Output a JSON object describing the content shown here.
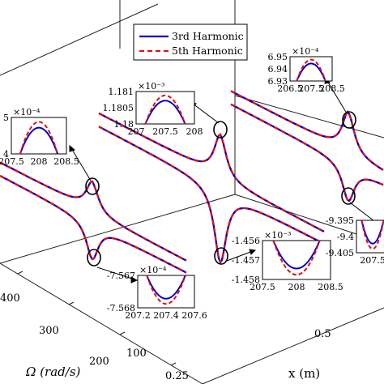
{
  "chart_data": {
    "type": "line",
    "subtype": "3d-frequency-response-curves",
    "axes": {
      "omega": {
        "label": "Ω (rad/s)",
        "ticks": [
          "400",
          "300",
          "200",
          "100",
          "0.25"
        ]
      },
      "x": {
        "label": "x (m)",
        "ticks": [
          "0.5"
        ]
      }
    },
    "legend": {
      "placement": "top-center",
      "entries": [
        {
          "name": "3rd Harmonic",
          "color": "#0000cc",
          "style": "solid"
        },
        {
          "name": "5th Harmonic",
          "color": "#dd1111",
          "style": "dashed"
        }
      ]
    },
    "insets": [
      {
        "id": "left-upper",
        "exponent": "×10⁻⁴",
        "yticks": [
          "5",
          "4"
        ],
        "xticks": [
          "207.5",
          "208",
          "208.5"
        ],
        "peak_type": "max",
        "harmonic3_peak": {
          "x": 208.0,
          "y": 4.6
        },
        "harmonic5_peak": {
          "x": 208.0,
          "y": 4.9
        }
      },
      {
        "id": "middle-upper",
        "exponent": "×10⁻³",
        "yticks": [
          "1.181",
          "1.1805",
          "1.18"
        ],
        "xticks": [
          "207",
          "207.5",
          "208"
        ],
        "peak_type": "max",
        "harmonic3_peak": {
          "x": 207.5,
          "y": 1.1806
        },
        "harmonic5_peak": {
          "x": 207.5,
          "y": 1.1807
        }
      },
      {
        "id": "right-upper",
        "exponent": "×10⁻⁴",
        "yticks": [
          "6.95",
          "6.94",
          "6.93"
        ],
        "xticks": [
          "206.5",
          "207.5",
          "208.5"
        ],
        "peak_type": "max",
        "harmonic3_peak": {
          "x": 207.5,
          "y": 6.944
        },
        "harmonic5_peak": {
          "x": 207.5,
          "y": 6.947
        }
      },
      {
        "id": "left-lower",
        "exponent": "×10⁻⁴",
        "yticks": [
          "-7.567",
          "-7.568"
        ],
        "xticks": [
          "207.2",
          "207.4",
          "207.6"
        ],
        "peak_type": "min",
        "harmonic3_peak": {
          "x": 207.4,
          "y": -7.5673
        },
        "harmonic5_peak": {
          "x": 207.4,
          "y": -7.5677
        }
      },
      {
        "id": "middle-lower",
        "exponent": "×10⁻³",
        "yticks": [
          "-1.456",
          "-1.457",
          "-1.458"
        ],
        "xticks": [
          "207.5",
          "208",
          "208.5"
        ],
        "peak_type": "min",
        "harmonic3_peak": {
          "x": 208.0,
          "y": -1.4572
        },
        "harmonic5_peak": {
          "x": 208.0,
          "y": -1.4574
        }
      },
      {
        "id": "right-lower",
        "exponent": "",
        "yticks": [
          "-9.395",
          "-9.4",
          "-9.405"
        ],
        "xticks": [
          "207.5"
        ],
        "peak_type": "min",
        "harmonic3_peak": {
          "x": 207.5,
          "y": -9.401
        },
        "harmonic5_peak": {
          "x": 207.5,
          "y": -9.402
        }
      }
    ]
  }
}
